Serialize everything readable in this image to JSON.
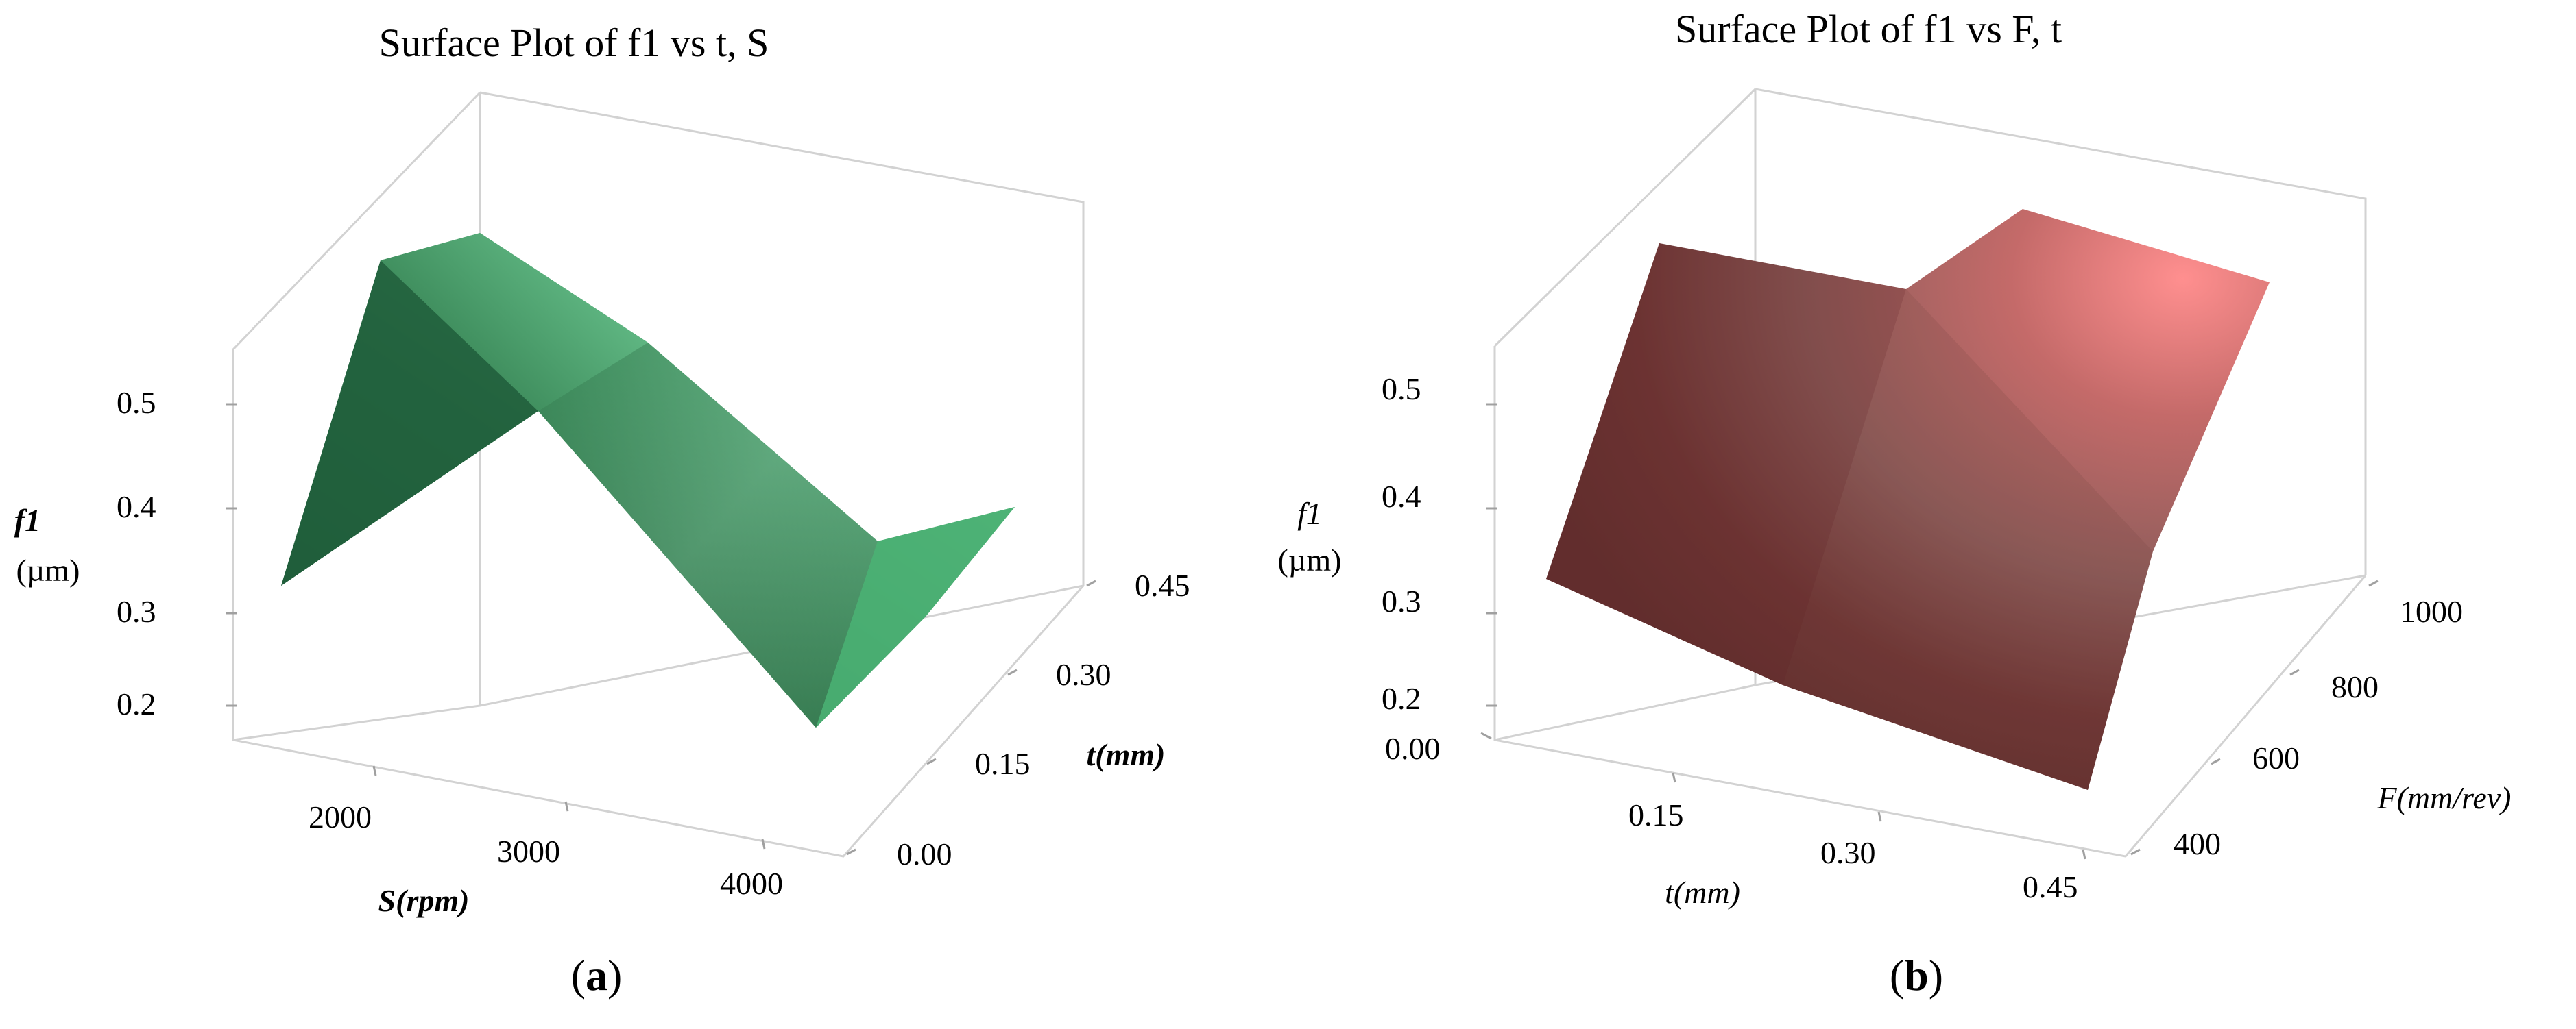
{
  "chart_data": [
    {
      "type": "surface",
      "title": "Surface Plot of f1 vs t, S",
      "panel_label_prefix": "(",
      "panel_label": "a",
      "panel_label_suffix": ")",
      "zlabel": "f1",
      "zunit": "(µm)",
      "xlabel": "S(rpm)",
      "ylabel": "t(mm)",
      "x_ticks": [
        "2000",
        "3000",
        "4000"
      ],
      "y_ticks": [
        "0.00",
        "0.15",
        "0.30",
        "0.45"
      ],
      "z_ticks": [
        "0.5",
        "0.4",
        "0.3",
        "0.2"
      ],
      "color": "#3d9a63",
      "surface_points": [
        {
          "S": 1600,
          "t": 0.0,
          "f1": 0.32
        },
        {
          "S": 1800,
          "t": 0.0,
          "f1": 0.55
        },
        {
          "S": 2600,
          "t": 0.0,
          "f1": 0.45
        },
        {
          "S": 4000,
          "t": 0.0,
          "f1": 0.2
        },
        {
          "S": 1600,
          "t": 0.45,
          "f1": 0.55
        },
        {
          "S": 2600,
          "t": 0.45,
          "f1": 0.5
        },
        {
          "S": 3600,
          "t": 0.45,
          "f1": 0.28
        },
        {
          "S": 4000,
          "t": 0.45,
          "f1": 0.32
        }
      ]
    },
    {
      "type": "surface",
      "title": "Surface Plot of f1 vs F, t",
      "panel_label_prefix": "(",
      "panel_label": "b",
      "panel_label_suffix": ")",
      "zlabel": "f1",
      "zunit": "(µm)",
      "xlabel": "t(mm)",
      "ylabel": "F(mm/rev)",
      "x_ticks": [
        "0.00",
        "0.15",
        "0.30",
        "0.45"
      ],
      "y_ticks": [
        "400",
        "600",
        "800",
        "1000"
      ],
      "z_ticks": [
        "0.5",
        "0.4",
        "0.3",
        "0.2"
      ],
      "color": "#8c4a48",
      "surface_points": [
        {
          "t": 0.0,
          "F": 300,
          "f1": 0.32
        },
        {
          "t": 0.45,
          "F": 300,
          "f1": 0.2
        },
        {
          "t": 0.45,
          "F": 700,
          "f1": 0.3
        },
        {
          "t": 0.45,
          "F": 1050,
          "f1": 0.55
        },
        {
          "t": 0.3,
          "F": 1050,
          "f1": 0.6
        },
        {
          "t": 0.15,
          "F": 1050,
          "f1": 0.52
        },
        {
          "t": 0.0,
          "F": 1050,
          "f1": 0.55
        }
      ]
    }
  ]
}
